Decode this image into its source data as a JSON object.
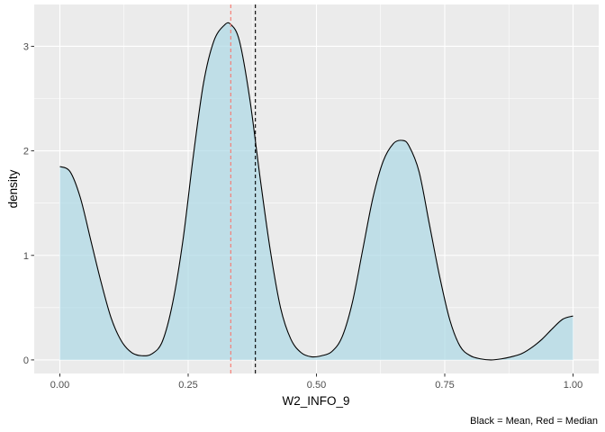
{
  "chart_data": {
    "type": "area",
    "title": "",
    "xlabel": "W2_INFO_9",
    "ylabel": "density",
    "caption": "Black = Mean, Red = Median",
    "xlim": [
      -0.05,
      1.05
    ],
    "ylim": [
      -0.13,
      3.4
    ],
    "x_ticks": [
      0.0,
      0.25,
      0.5,
      0.75,
      1.0
    ],
    "x_tick_labels": [
      "0.00",
      "0.25",
      "0.50",
      "0.75",
      "1.00"
    ],
    "y_ticks": [
      0,
      1,
      2,
      3
    ],
    "y_tick_labels": [
      "0",
      "1",
      "2",
      "3"
    ],
    "grid": true,
    "fill_color": "#add8e6",
    "fill_opacity": 0.7,
    "line_color": "#000000",
    "panel_background": "#ebebeb",
    "grid_color": "#ffffff",
    "mean": 0.381,
    "median": 0.333,
    "mean_color": "#000000",
    "median_color": "#f8766d",
    "x": [
      0.0,
      0.02,
      0.04,
      0.06,
      0.08,
      0.1,
      0.12,
      0.14,
      0.16,
      0.18,
      0.2,
      0.22,
      0.24,
      0.26,
      0.28,
      0.3,
      0.32,
      0.333,
      0.35,
      0.37,
      0.39,
      0.41,
      0.43,
      0.45,
      0.47,
      0.49,
      0.51,
      0.53,
      0.55,
      0.57,
      0.59,
      0.61,
      0.63,
      0.65,
      0.667,
      0.68,
      0.7,
      0.72,
      0.74,
      0.76,
      0.78,
      0.8,
      0.82,
      0.84,
      0.86,
      0.88,
      0.9,
      0.92,
      0.94,
      0.96,
      0.98,
      1.0
    ],
    "y": [
      1.85,
      1.8,
      1.55,
      1.15,
      0.75,
      0.4,
      0.18,
      0.07,
      0.04,
      0.06,
      0.18,
      0.55,
      1.15,
      1.95,
      2.65,
      3.05,
      3.2,
      3.21,
      3.05,
      2.5,
      1.75,
      1.05,
      0.5,
      0.2,
      0.07,
      0.03,
      0.04,
      0.08,
      0.22,
      0.55,
      1.05,
      1.55,
      1.9,
      2.07,
      2.1,
      2.05,
      1.8,
      1.3,
      0.8,
      0.38,
      0.13,
      0.04,
      0.01,
      0.0,
      0.01,
      0.03,
      0.06,
      0.12,
      0.2,
      0.3,
      0.39,
      0.42
    ]
  }
}
